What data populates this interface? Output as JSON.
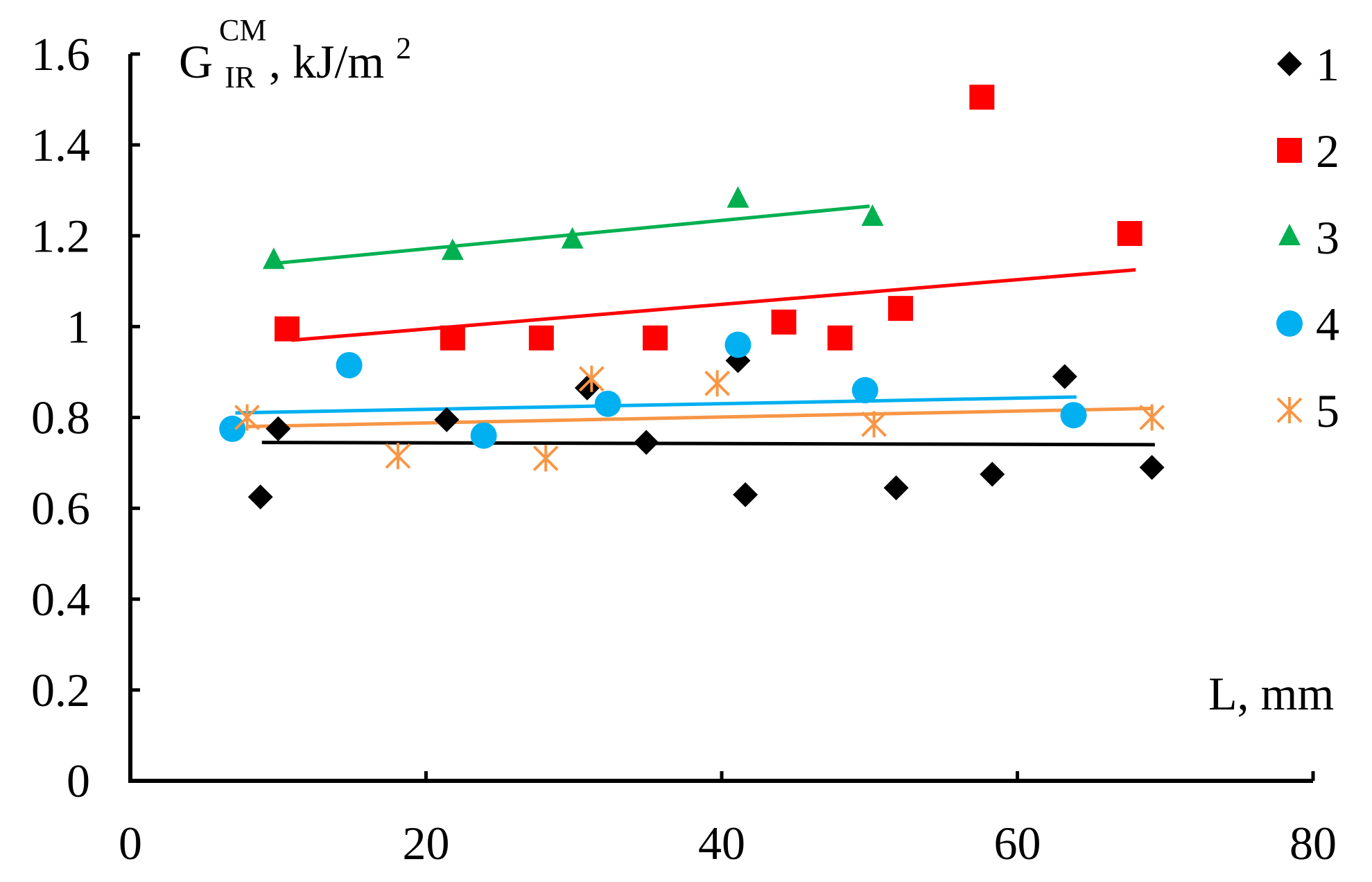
{
  "chart_data": {
    "type": "scatter",
    "title": "",
    "xlabel": "L, mm",
    "ylabel": {
      "main": "G",
      "superscript": "CM",
      "subscript": "IR",
      "unit": ", kJ/m",
      "unit_power": "2"
    },
    "xlim": [
      0,
      80
    ],
    "ylim": [
      0,
      1.6
    ],
    "x_ticks": [
      {
        "value": 0,
        "label": "0"
      },
      {
        "value": 20,
        "label": "20"
      },
      {
        "value": 40,
        "label": "40"
      },
      {
        "value": 60,
        "label": "60"
      },
      {
        "value": 80,
        "label": "80"
      }
    ],
    "y_ticks": [
      {
        "value": 0,
        "label": "0"
      },
      {
        "value": 0.2,
        "label": "0.2"
      },
      {
        "value": 0.4,
        "label": "0.4"
      },
      {
        "value": 0.6,
        "label": "0.6"
      },
      {
        "value": 0.8,
        "label": "0.8"
      },
      {
        "value": 1.0,
        "label": "1"
      },
      {
        "value": 1.2,
        "label": "1.2"
      },
      {
        "value": 1.4,
        "label": "1.4"
      },
      {
        "value": 1.6,
        "label": "1.6"
      }
    ],
    "grid": false,
    "legend_position": "right",
    "series": [
      {
        "name": "1",
        "marker": "diamond",
        "color": "#000000",
        "points": [
          [
            8.8,
            0.625
          ],
          [
            10.0,
            0.775
          ],
          [
            21.4,
            0.795
          ],
          [
            30.9,
            0.865
          ],
          [
            34.9,
            0.745
          ],
          [
            41.1,
            0.925
          ],
          [
            41.6,
            0.63
          ],
          [
            51.8,
            0.645
          ],
          [
            58.3,
            0.675
          ],
          [
            63.2,
            0.89
          ],
          [
            69.1,
            0.69
          ]
        ],
        "trend": [
          [
            8.9,
            0.745
          ],
          [
            69.3,
            0.74
          ]
        ]
      },
      {
        "name": "2",
        "marker": "square",
        "color": "#ff0000",
        "points": [
          [
            10.6,
            0.995
          ],
          [
            21.8,
            0.975
          ],
          [
            27.8,
            0.975
          ],
          [
            35.5,
            0.975
          ],
          [
            44.2,
            1.01
          ],
          [
            48.0,
            0.975
          ],
          [
            52.1,
            1.04
          ],
          [
            57.6,
            1.505
          ],
          [
            67.6,
            1.205
          ]
        ],
        "trend": [
          [
            10.9,
            0.97
          ],
          [
            68.0,
            1.125
          ]
        ]
      },
      {
        "name": "3",
        "marker": "triangle",
        "color": "#00b050",
        "points": [
          [
            9.7,
            1.145
          ],
          [
            21.8,
            1.165
          ],
          [
            29.9,
            1.19
          ],
          [
            41.1,
            1.28
          ],
          [
            50.2,
            1.24
          ]
        ],
        "trend": [
          [
            10.0,
            1.14
          ],
          [
            50.0,
            1.265
          ]
        ]
      },
      {
        "name": "4",
        "marker": "circle",
        "color": "#00b0f0",
        "points": [
          [
            6.9,
            0.775
          ],
          [
            14.8,
            0.915
          ],
          [
            23.9,
            0.76
          ],
          [
            32.3,
            0.83
          ],
          [
            41.1,
            0.96
          ],
          [
            49.7,
            0.86
          ],
          [
            63.8,
            0.805
          ]
        ],
        "trend": [
          [
            7.1,
            0.81
          ],
          [
            64.0,
            0.845
          ]
        ]
      },
      {
        "name": "5",
        "marker": "asterisk",
        "color": "#f79646",
        "points": [
          [
            7.9,
            0.8
          ],
          [
            18.1,
            0.715
          ],
          [
            28.1,
            0.71
          ],
          [
            31.2,
            0.885
          ],
          [
            39.7,
            0.875
          ],
          [
            50.3,
            0.785
          ],
          [
            69.1,
            0.8
          ]
        ],
        "trend": [
          [
            8.0,
            0.78
          ],
          [
            69.2,
            0.82
          ]
        ]
      }
    ]
  }
}
